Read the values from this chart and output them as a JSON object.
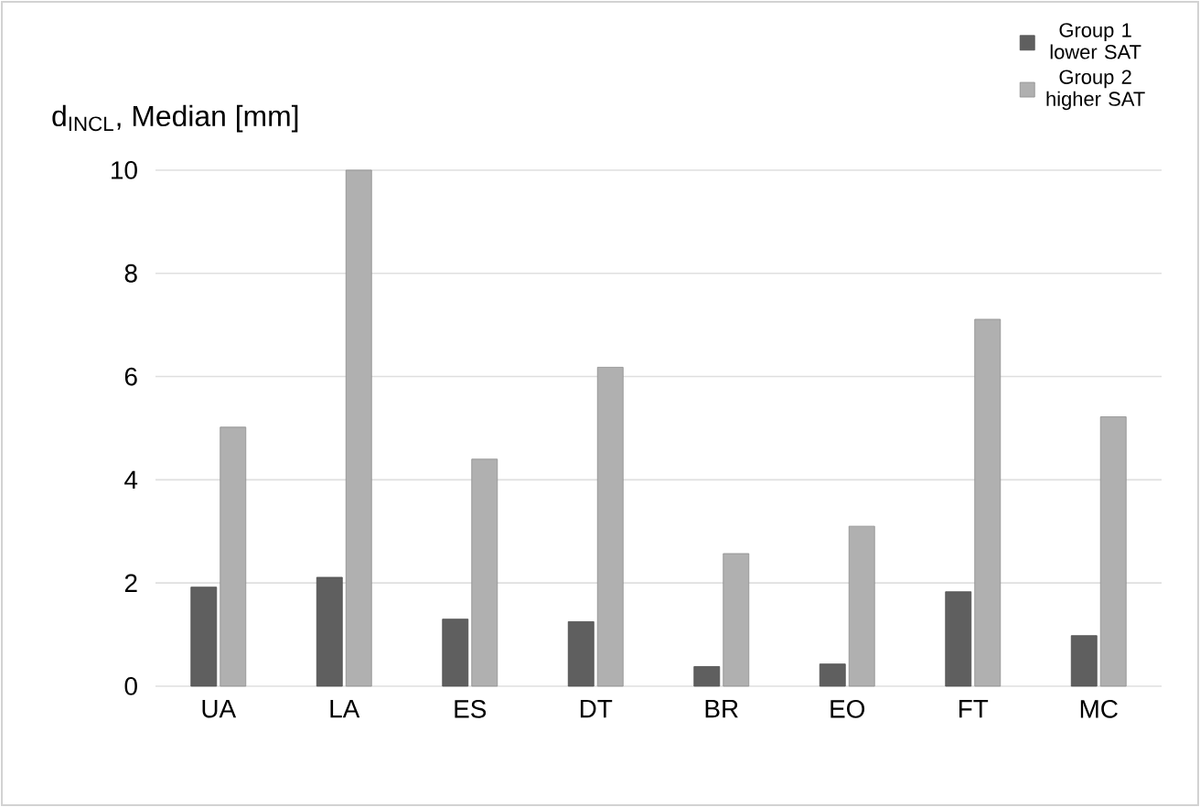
{
  "chart_data": {
    "type": "bar",
    "ylabel": "d$_{INCL}$, Median [mm]",
    "categories": [
      "UA",
      "LA",
      "ES",
      "DT",
      "BR",
      "EO",
      "FT",
      "MC"
    ],
    "series": [
      {
        "name": "Group 1 lower SAT",
        "color": "#5f5f5f",
        "values": [
          1.92,
          2.11,
          1.3,
          1.25,
          0.38,
          0.43,
          1.83,
          0.98
        ]
      },
      {
        "name": "Group 2 higher SAT",
        "color": "#b0b0b0",
        "values": [
          5.02,
          10.0,
          4.4,
          6.18,
          2.57,
          3.1,
          7.11,
          5.22
        ]
      }
    ],
    "ylim": [
      0,
      10
    ],
    "yticks": [
      0,
      2,
      4,
      6,
      8,
      10
    ],
    "grid": "y",
    "legend": "top right"
  }
}
